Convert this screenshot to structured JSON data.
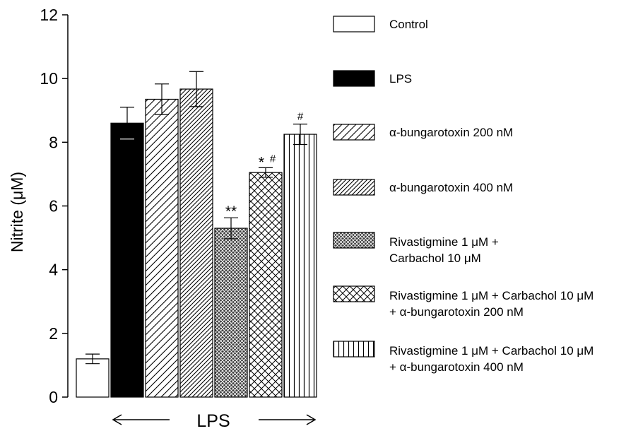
{
  "chart_data": {
    "type": "bar",
    "ylabel": "Nitrite (μM)",
    "xlabel": "",
    "ylim": [
      0,
      12
    ],
    "yticks": [
      0,
      2,
      4,
      6,
      8,
      10,
      12
    ],
    "grid": false,
    "legend_position": "right",
    "group_label": "LPS",
    "series": [
      {
        "name": "Control",
        "value": 1.2,
        "error": 0.15,
        "fill": "white",
        "annotation": ""
      },
      {
        "name": "LPS",
        "value": 8.6,
        "error": 0.5,
        "fill": "solid-black",
        "annotation": ""
      },
      {
        "name": "α-bungarotoxin 200 nM",
        "value": 9.35,
        "error": 0.48,
        "fill": "diagonal-sparse",
        "annotation": ""
      },
      {
        "name": "α-bungarotoxin 400 nM",
        "value": 9.67,
        "error": 0.55,
        "fill": "diagonal-dense",
        "annotation": ""
      },
      {
        "name": [
          "Rivastigmine 1 μM +",
          "Carbachol 10 μM"
        ],
        "value": 5.3,
        "error": 0.33,
        "fill": "dark-crosshatch",
        "annotation": "**"
      },
      {
        "name": [
          "Rivastigmine 1 μM + Carbachol 10 μM",
          "+ α-bungarotoxin 200 nM"
        ],
        "value": 7.05,
        "error": 0.15,
        "fill": "crosshatch",
        "annotation": "*#"
      },
      {
        "name": [
          "Rivastigmine 1 μM + Carbachol 10 μM",
          "+  α-bungarotoxin 400 nM"
        ],
        "value": 8.25,
        "error": 0.32,
        "fill": "vertical-lines",
        "annotation": "#"
      }
    ]
  }
}
